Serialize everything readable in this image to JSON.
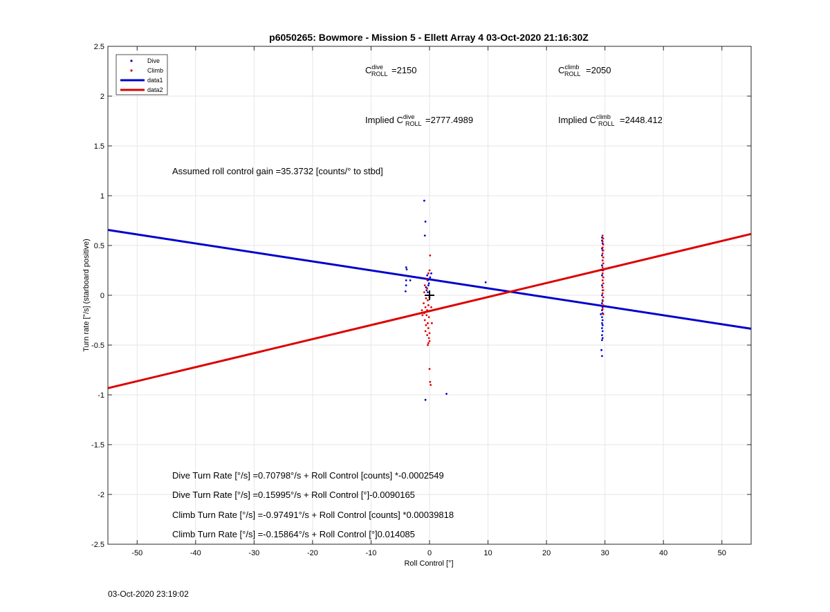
{
  "chart_data": {
    "type": "scatter",
    "title": "p6050265: Bowmore - Mission 5 - Ellett Array 4 03-Oct-2020 21:16:30Z",
    "xlabel": "Roll Control [°]",
    "ylabel": "Turn rate [°/s] (starboard positive)",
    "xlim": [
      -55,
      55
    ],
    "ylim": [
      -2.5,
      2.5
    ],
    "xticks": [
      -50,
      -40,
      -30,
      -20,
      -10,
      0,
      10,
      20,
      30,
      40,
      50
    ],
    "yticks": [
      -2.5,
      -2,
      -1.5,
      -1,
      -0.5,
      0,
      0.5,
      1,
      1.5,
      2,
      2.5
    ],
    "xtick_labels": [
      "-50",
      "-40",
      "-30",
      "-20",
      "-10",
      "0",
      "10",
      "20",
      "30",
      "40",
      "50"
    ],
    "ytick_labels": [
      "-2.5",
      "-2",
      "-1.5",
      "-1",
      "-0.5",
      "0",
      "0.5",
      "1",
      "1.5",
      "2",
      "2.5"
    ],
    "grid": true,
    "legend_position": "top-left",
    "colors": {
      "dive": "#0000cc",
      "climb": "#dd0000",
      "marker": "#000000"
    },
    "legend": [
      {
        "label": "Dive",
        "kind": "marker",
        "color": "#0000cc"
      },
      {
        "label": "Climb",
        "kind": "marker",
        "color": "#dd0000"
      },
      {
        "label": "data1",
        "kind": "line",
        "color": "#0000cc"
      },
      {
        "label": "data2",
        "kind": "line",
        "color": "#dd0000"
      }
    ],
    "series": [
      {
        "name": "Dive",
        "kind": "scatter",
        "color": "#0000cc",
        "points": [
          [
            -0.9,
            0.95
          ],
          [
            -0.7,
            0.74
          ],
          [
            -0.8,
            0.6
          ],
          [
            -0.4,
            0.2
          ],
          [
            -0.3,
            0.15
          ],
          [
            -0.2,
            0.1
          ],
          [
            -0.5,
            0.05
          ],
          [
            0.1,
            0.18
          ],
          [
            0.3,
            0.22
          ],
          [
            -0.1,
            0.12
          ],
          [
            -0.6,
            0.08
          ],
          [
            -0.3,
            0.03
          ],
          [
            0.0,
            -0.02
          ],
          [
            -0.7,
            -1.05
          ],
          [
            2.9,
            -0.99
          ],
          [
            9.6,
            0.13
          ],
          [
            -4.0,
            0.28
          ],
          [
            -3.9,
            0.26
          ],
          [
            -4.0,
            0.15
          ],
          [
            -4.0,
            0.1
          ],
          [
            -4.1,
            0.04
          ],
          [
            -3.3,
            0.15
          ],
          [
            29.5,
            0.58
          ],
          [
            29.5,
            0.55
          ],
          [
            29.6,
            0.52
          ],
          [
            29.5,
            0.47
          ],
          [
            29.6,
            0.45
          ],
          [
            29.5,
            0.4
          ],
          [
            29.6,
            0.35
          ],
          [
            29.5,
            0.3
          ],
          [
            29.6,
            0.25
          ],
          [
            29.5,
            0.2
          ],
          [
            29.6,
            0.15
          ],
          [
            29.5,
            0.1
          ],
          [
            29.6,
            0.05
          ],
          [
            29.5,
            0.0
          ],
          [
            29.6,
            -0.05
          ],
          [
            29.5,
            -0.08
          ],
          [
            29.6,
            -0.12
          ],
          [
            29.5,
            -0.15
          ],
          [
            29.6,
            -0.18
          ],
          [
            29.5,
            -0.22
          ],
          [
            29.6,
            -0.25
          ],
          [
            29.5,
            -0.28
          ],
          [
            29.6,
            -0.3
          ],
          [
            29.5,
            -0.33
          ],
          [
            29.6,
            -0.36
          ],
          [
            29.5,
            -0.4
          ],
          [
            29.6,
            -0.43
          ],
          [
            29.5,
            -0.45
          ],
          [
            29.4,
            -0.55
          ],
          [
            29.5,
            -0.61
          ],
          [
            29.3,
            -0.19
          ]
        ]
      },
      {
        "name": "Climb",
        "kind": "scatter",
        "color": "#dd0000",
        "points": [
          [
            0.1,
            0.4
          ],
          [
            0.0,
            0.25
          ],
          [
            -0.2,
            0.22
          ],
          [
            -0.5,
            0.16
          ],
          [
            -0.8,
            0.1
          ],
          [
            -0.4,
            0.07
          ],
          [
            -0.9,
            0.03
          ],
          [
            -0.6,
            -0.03
          ],
          [
            -0.3,
            -0.05
          ],
          [
            -1.0,
            -0.08
          ],
          [
            -0.2,
            -0.1
          ],
          [
            -0.7,
            -0.12
          ],
          [
            -0.4,
            -0.15
          ],
          [
            -0.9,
            -0.18
          ],
          [
            -0.5,
            -0.2
          ],
          [
            -0.1,
            -0.22
          ],
          [
            -0.8,
            -0.25
          ],
          [
            -0.3,
            -0.28
          ],
          [
            -0.6,
            -0.3
          ],
          [
            -0.2,
            -0.33
          ],
          [
            -0.7,
            -0.36
          ],
          [
            0.0,
            -0.38
          ],
          [
            -0.4,
            -0.4
          ],
          [
            -0.1,
            -0.43
          ],
          [
            0.0,
            -0.46
          ],
          [
            -0.2,
            -0.48
          ],
          [
            -0.3,
            -0.5
          ],
          [
            0.0,
            -0.74
          ],
          [
            0.1,
            -0.87
          ],
          [
            0.2,
            -0.9
          ],
          [
            -1.2,
            -0.2
          ],
          [
            -1.3,
            -0.15
          ],
          [
            0.3,
            -0.12
          ],
          [
            0.4,
            -0.28
          ],
          [
            29.6,
            0.6
          ],
          [
            29.7,
            0.57
          ],
          [
            29.6,
            0.54
          ],
          [
            29.7,
            0.51
          ],
          [
            29.6,
            0.48
          ],
          [
            29.7,
            0.45
          ],
          [
            29.6,
            0.42
          ],
          [
            29.7,
            0.38
          ],
          [
            29.6,
            0.35
          ],
          [
            29.7,
            0.32
          ],
          [
            29.6,
            0.28
          ],
          [
            29.7,
            0.25
          ],
          [
            29.6,
            0.22
          ],
          [
            29.7,
            0.18
          ],
          [
            29.6,
            0.15
          ],
          [
            29.7,
            0.12
          ],
          [
            29.6,
            0.08
          ],
          [
            29.7,
            0.05
          ],
          [
            29.6,
            0.02
          ],
          [
            29.7,
            -0.02
          ],
          [
            29.6,
            -0.06
          ],
          [
            29.7,
            -0.1
          ],
          [
            29.6,
            -0.14
          ],
          [
            29.7,
            -0.19
          ]
        ]
      },
      {
        "name": "data1",
        "kind": "line",
        "color": "#0000cc",
        "points": [
          [
            -55,
            0.656
          ],
          [
            55,
            -0.336
          ]
        ]
      },
      {
        "name": "data2",
        "kind": "line",
        "color": "#dd0000",
        "points": [
          [
            -55,
            -0.933
          ],
          [
            55,
            0.616
          ]
        ]
      }
    ],
    "crosshair": [
      0,
      0
    ]
  },
  "annotations": {
    "c_dive_base": "C",
    "c_dive_sup": "dive",
    "c_dive_sub": "ROLL",
    "c_dive_value": "=2150",
    "c_climb_base": "C",
    "c_climb_sup": "climb",
    "c_climb_sub": "ROLL",
    "c_climb_value": "=2050",
    "implied_dive_prefix": "Implied C",
    "implied_dive_sup": "dive",
    "implied_dive_sub": "ROLL",
    "implied_dive_value": "=2777.4989",
    "implied_climb_prefix": "Implied C",
    "implied_climb_sup": "climb",
    "implied_climb_sub": "ROLL",
    "implied_climb_value": "=2448.412",
    "gain": "Assumed roll control gain =35.3732 [counts/° to stbd]",
    "fit1": "Dive Turn Rate [°/s] =0.70798°/s + Roll Control [counts] *-0.0002549",
    "fit2": "Dive Turn Rate [°/s] =0.15995°/s + Roll Control [°]-0.0090165",
    "fit3": "Climb Turn Rate [°/s] =-0.97491°/s + Roll Control [counts] *0.00039818",
    "fit4": "Climb Turn Rate [°/s] =-0.15864°/s + Roll Control [°]0.014085"
  },
  "footer": {
    "timestamp": "03-Oct-2020 23:19:02"
  }
}
